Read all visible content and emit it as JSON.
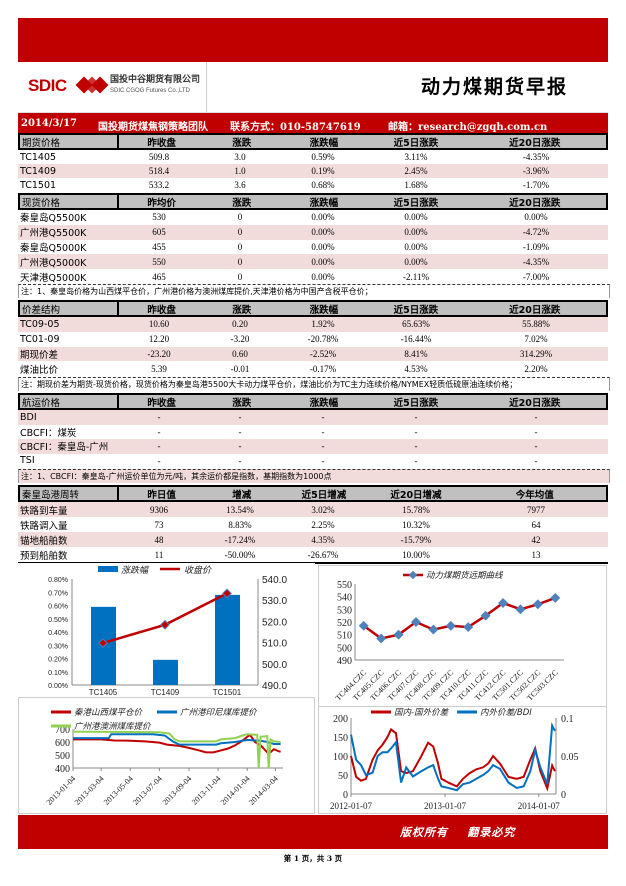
{
  "header": {
    "logo_text": "SDIC",
    "company_cn": "国投中谷期货有限公司",
    "company_en": "SDIC CGOG Futures Co.,LTD",
    "title": "动力煤期货早报",
    "date": "2014/3/17",
    "team": "国投期货煤焦钢策略团队",
    "contact": "联系方式：010-58747619",
    "email": "邮箱：research@zgqh.com.cn",
    "brand_color": "#c00000"
  },
  "sections": [
    {
      "header": [
        "期货价格",
        "昨收盘",
        "涨跌",
        "涨跌幅",
        "近5日涨跌",
        "近20日涨跌"
      ],
      "rows": [
        [
          "TC1405",
          "509.8",
          "3.0",
          "0.59%",
          "3.11%",
          "-4.35%"
        ],
        [
          "TC1409",
          "518.4",
          "1.0",
          "0.19%",
          "2.45%",
          "-3.96%"
        ],
        [
          "TC1501",
          "533.2",
          "3.6",
          "0.68%",
          "1.68%",
          "-1.70%"
        ]
      ],
      "pink": [
        1
      ]
    },
    {
      "header": [
        "现货价格",
        "昨均价",
        "涨跌",
        "涨跌幅",
        "近5日涨跌",
        "近20日涨跌"
      ],
      "rows": [
        [
          "秦皇岛Q5500K",
          "530",
          "0",
          "0.00%",
          "0.00%",
          "0.00%"
        ],
        [
          "广州港Q5500K",
          "605",
          "0",
          "0.00%",
          "0.00%",
          "-4.72%"
        ],
        [
          "秦皇岛Q5000K",
          "455",
          "0",
          "0.00%",
          "0.00%",
          "-1.09%"
        ],
        [
          "广州港Q5000K",
          "550",
          "0",
          "0.00%",
          "0.00%",
          "-4.35%"
        ],
        [
          "天津港Q5000K",
          "465",
          "0",
          "0.00%",
          "-2.11%",
          "-7.00%"
        ]
      ],
      "pink": [
        1,
        3
      ]
    },
    {
      "header": [
        "价差结构",
        "昨收盘",
        "涨跌",
        "涨跌幅",
        "近5日涨跌",
        "近20日涨跌"
      ],
      "rows": [
        [
          "TC09-05",
          "10.60",
          "0.20",
          "1.92%",
          "65.63%",
          "55.88%"
        ],
        [
          "TC01-09",
          "12.20",
          "-3.20",
          "-20.78%",
          "-16.44%",
          "7.02%"
        ],
        [
          "期现价差",
          "-23.20",
          "0.60",
          "-2.52%",
          "8.41%",
          "314.29%"
        ],
        [
          "煤油比价",
          "5.39",
          "-0.01",
          "-0.17%",
          "4.53%",
          "2.20%"
        ]
      ],
      "pink": [
        0,
        2
      ]
    },
    {
      "header": [
        "航运价格",
        "昨收盘",
        "涨跌",
        "涨跌幅",
        "近5日涨跌",
        "近20日涨跌"
      ],
      "rows": [
        [
          "BDI",
          "-",
          "-",
          "-",
          "-",
          "-"
        ],
        [
          "CBCFI：煤炭",
          "-",
          "-",
          "-",
          "-",
          "-"
        ],
        [
          "CBCFI：秦皇岛-广州",
          "-",
          "-",
          "-",
          "-",
          "-"
        ],
        [
          "TSI",
          "-",
          "-",
          "-",
          "-",
          "-"
        ]
      ],
      "pink": [
        0,
        2
      ]
    },
    {
      "header": [
        "秦皇岛港周转",
        "昨日值",
        "增减",
        "近5日增减",
        "近20日增减",
        "今年均值"
      ],
      "rows": [
        [
          "铁路到车量",
          "9306",
          "13.54%",
          "3.02%",
          "15.78%",
          "7977"
        ],
        [
          "铁路调入量",
          "73",
          "8.83%",
          "2.25%",
          "10.32%",
          "64"
        ],
        [
          "锚地船舶数",
          "48",
          "-17.24%",
          "4.35%",
          "-15.79%",
          "42"
        ],
        [
          "预到船舶数",
          "11",
          "-50.00%",
          "-26.67%",
          "10.00%",
          "13"
        ]
      ],
      "pink": [
        0,
        2
      ]
    }
  ],
  "notes": [
    "注：1、秦皇岛价格为山西煤平仓价，广州港价格为澳洲煤库提价,天津港价格为中国产含税平仓价；",
    "注：期现价差为期货-现货价格，现货价格为秦皇岛港5500大卡动力煤平仓价，煤油比价为TC主力连续价格/NYMEX轻质低硫原油连续价格；",
    "注：1、CBCFI：秦皇岛-广州运价单位为元/吨，其余运价都是指数，基期指数为1000点"
  ],
  "chart_data": [
    {
      "type": "bar+line",
      "categories": [
        "TC1405",
        "TC1409",
        "TC1501"
      ],
      "series": [
        {
          "name": "涨跌幅",
          "type": "bar",
          "axis": "left",
          "values": [
            0.59,
            0.19,
            0.68
          ],
          "color": "#0070c0"
        },
        {
          "name": "收盘价",
          "type": "line",
          "axis": "right",
          "values": [
            509.8,
            518.4,
            533.2
          ],
          "color": "#c00000"
        }
      ],
      "left_ticks": [
        "0.00%",
        "0.10%",
        "0.20%",
        "0.30%",
        "0.40%",
        "0.50%",
        "0.60%",
        "0.70%",
        "0.80%"
      ],
      "left_ylim": [
        0,
        0.8
      ],
      "right_ticks": [
        "490.0",
        "500.0",
        "510.0",
        "520.0",
        "530.0",
        "540.0"
      ],
      "right_ylim": [
        490,
        540
      ],
      "legend": "top"
    },
    {
      "type": "line",
      "categories": [
        "TC404.CZC",
        "TC405.CZC",
        "TC406.CZC",
        "TC407.CZC",
        "TC408.CZC",
        "TC409.CZC",
        "TC410.CZC",
        "TC411.CZC",
        "TC412.CZC",
        "TC501.CZC",
        "TC502.CZC",
        "TC503.CZC"
      ],
      "series": [
        {
          "name": "动力煤期货远期曲线",
          "values": [
            517,
            507,
            510,
            520,
            514,
            517,
            516,
            525,
            535,
            530,
            534,
            539
          ],
          "color": "#c00000",
          "marker": "#4f81bd"
        }
      ],
      "yticks": [
        "490",
        "500",
        "510",
        "520",
        "530",
        "540",
        "550"
      ],
      "ylim": [
        490,
        550
      ],
      "legend": "top"
    },
    {
      "type": "line",
      "xticks": [
        "2013-01-04",
        "2013-03-04",
        "2013-05-04",
        "2013-07-04",
        "2013-09-04",
        "2013-11-04",
        "2014-01-04",
        "2014-03-04"
      ],
      "xlim": [
        "2013-01-04",
        "2014-03-20"
      ],
      "yticks": [
        "400",
        "500",
        "600",
        "700"
      ],
      "ylim": [
        400,
        700
      ],
      "legend": "top",
      "series": [
        {
          "name": "秦港山西煤平仓价",
          "color": "#c00000",
          "points": [
            [
              "2013-01-04",
              620
            ],
            [
              "2013-03-04",
              620
            ],
            [
              "2013-04-01",
              612
            ],
            [
              "2013-05-04",
              610
            ],
            [
              "2013-06-04",
              605
            ],
            [
              "2013-07-04",
              595
            ],
            [
              "2013-07-20",
              580
            ],
            [
              "2013-08-15",
              570
            ],
            [
              "2013-09-04",
              555
            ],
            [
              "2013-09-25",
              535
            ],
            [
              "2013-10-10",
              520
            ],
            [
              "2013-10-25",
              520
            ],
            [
              "2013-11-10",
              535
            ],
            [
              "2013-11-25",
              550
            ],
            [
              "2013-12-10",
              575
            ],
            [
              "2013-12-25",
              610
            ],
            [
              "2014-01-04",
              640
            ],
            [
              "2014-01-10",
              655
            ],
            [
              "2014-01-20",
              600
            ],
            [
              "2014-02-01",
              575
            ],
            [
              "2014-02-15",
              520
            ],
            [
              "2014-02-20",
              515
            ],
            [
              "2014-03-01",
              545
            ],
            [
              "2014-03-10",
              530
            ],
            [
              "2014-03-15",
              525
            ]
          ]
        },
        {
          "name": "广州港印尼煤库提价",
          "color": "#0070c0",
          "points": [
            [
              "2013-01-04",
              630
            ],
            [
              "2013-03-20",
              630
            ],
            [
              "2013-03-25",
              660
            ],
            [
              "2013-06-20",
              660
            ],
            [
              "2013-07-15",
              650
            ],
            [
              "2013-08-01",
              605
            ],
            [
              "2013-08-15",
              580
            ],
            [
              "2013-10-31",
              580
            ],
            [
              "2013-11-10",
              590
            ],
            [
              "2013-12-10",
              600
            ],
            [
              "2013-12-25",
              610
            ],
            [
              "2014-01-04",
              615
            ],
            [
              "2014-02-01",
              610
            ],
            [
              "2014-02-15",
              600
            ],
            [
              "2014-03-01",
              585
            ],
            [
              "2014-03-15",
              585
            ]
          ]
        },
        {
          "name": "广州港澳洲煤库提价",
          "color": "#92d050",
          "points": [
            [
              "2013-01-04",
              680
            ],
            [
              "2013-07-04",
              675
            ],
            [
              "2013-07-25",
              665
            ],
            [
              "2013-08-05",
              620
            ],
            [
              "2013-08-15",
              605
            ],
            [
              "2013-10-31",
              605
            ],
            [
              "2013-11-10",
              620
            ],
            [
              "2013-12-10",
              630
            ],
            [
              "2013-12-25",
              650
            ],
            [
              "2014-01-04",
              660
            ],
            [
              "2014-01-25",
              655
            ],
            [
              "2014-01-28",
              400
            ],
            [
              "2014-02-01",
              640
            ],
            [
              "2014-02-15",
              645
            ],
            [
              "2014-02-18",
              400
            ],
            [
              "2014-02-22",
              620
            ],
            [
              "2014-03-01",
              605
            ],
            [
              "2014-03-15",
              600
            ]
          ]
        }
      ]
    },
    {
      "type": "line",
      "xticks": [
        "2012-01-07",
        "2013-01-07",
        "2014-01-07"
      ],
      "xlim": [
        "2012-01-07",
        "2014-03-15"
      ],
      "left_ticks": [
        "0",
        "50",
        "100",
        "150",
        "200"
      ],
      "left_ylim": [
        0,
        200
      ],
      "right_ticks": [
        "0",
        "0.05",
        "0.1"
      ],
      "right_ylim": [
        0,
        0.1
      ],
      "legend": "top",
      "series": [
        {
          "name": "国内-国外价差",
          "axis": "left",
          "color": "#c00000",
          "points": [
            [
              "2012-01-07",
              100
            ],
            [
              "2012-01-27",
              45
            ],
            [
              "2012-02-15",
              35
            ],
            [
              "2012-03-05",
              40
            ],
            [
              "2012-03-31",
              90
            ],
            [
              "2012-04-20",
              115
            ],
            [
              "2012-05-09",
              130
            ],
            [
              "2012-05-28",
              150
            ],
            [
              "2012-06-11",
              170
            ],
            [
              "2012-06-30",
              160
            ],
            [
              "2012-07-20",
              60
            ],
            [
              "2012-08-09",
              55
            ],
            [
              "2012-09-04",
              60
            ],
            [
              "2012-10-07",
              100
            ],
            [
              "2012-11-02",
              135
            ],
            [
              "2012-11-22",
              125
            ],
            [
              "2012-12-11",
              80
            ],
            [
              "2012-12-24",
              40
            ],
            [
              "2013-01-20",
              30
            ],
            [
              "2013-02-22",
              20
            ],
            [
              "2013-03-18",
              40
            ],
            [
              "2013-04-13",
              55
            ],
            [
              "2013-05-09",
              65
            ],
            [
              "2013-06-04",
              70
            ],
            [
              "2013-06-24",
              80
            ],
            [
              "2013-07-13",
              100
            ],
            [
              "2013-08-09",
              80
            ],
            [
              "2013-09-11",
              45
            ],
            [
              "2013-10-13",
              40
            ],
            [
              "2013-11-09",
              45
            ],
            [
              "2013-12-05",
              90
            ],
            [
              "2013-12-24",
              120
            ],
            [
              "2014-01-13",
              60
            ],
            [
              "2014-02-09",
              15
            ],
            [
              "2014-02-28",
              75
            ],
            [
              "2014-03-11",
              60
            ]
          ]
        },
        {
          "name": "内外价差/BDI",
          "axis": "right",
          "color": "#0070c0",
          "points": [
            [
              "2012-01-07",
              0.078
            ],
            [
              "2012-01-27",
              0.045
            ],
            [
              "2012-02-15",
              0.038
            ],
            [
              "2012-03-05",
              0.025
            ],
            [
              "2012-03-31",
              0.028
            ],
            [
              "2012-04-20",
              0.05
            ],
            [
              "2012-05-09",
              0.055
            ],
            [
              "2012-05-28",
              0.055
            ],
            [
              "2012-06-11",
              0.06
            ],
            [
              "2012-06-30",
              0.068
            ],
            [
              "2012-07-20",
              0.015
            ],
            [
              "2012-08-09",
              0.035
            ],
            [
              "2012-09-04",
              0.023
            ],
            [
              "2012-10-07",
              0.03
            ],
            [
              "2012-11-02",
              0.035
            ],
            [
              "2012-11-22",
              0.038
            ],
            [
              "2012-12-11",
              0.02
            ],
            [
              "2012-12-24",
              0.01
            ],
            [
              "2013-01-20",
              0.008
            ],
            [
              "2013-02-22",
              0.005
            ],
            [
              "2013-03-18",
              0.013
            ],
            [
              "2013-04-13",
              0.015
            ],
            [
              "2013-05-09",
              0.02
            ],
            [
              "2013-06-04",
              0.025
            ],
            [
              "2013-06-24",
              0.03
            ],
            [
              "2013-07-13",
              0.038
            ],
            [
              "2013-08-09",
              0.033
            ],
            [
              "2013-09-11",
              0.015
            ],
            [
              "2013-10-13",
              0.008
            ],
            [
              "2013-11-09",
              0.01
            ],
            [
              "2013-12-05",
              0.03
            ],
            [
              "2013-12-24",
              0.058
            ],
            [
              "2014-01-13",
              0.035
            ],
            [
              "2014-02-09",
              0.013
            ],
            [
              "2014-02-28",
              0.09
            ],
            [
              "2014-03-11",
              0.083
            ]
          ]
        }
      ]
    }
  ],
  "footer": {
    "copyright": "版权所有    翻录必究",
    "page": "第 1 页，共 3 页"
  }
}
